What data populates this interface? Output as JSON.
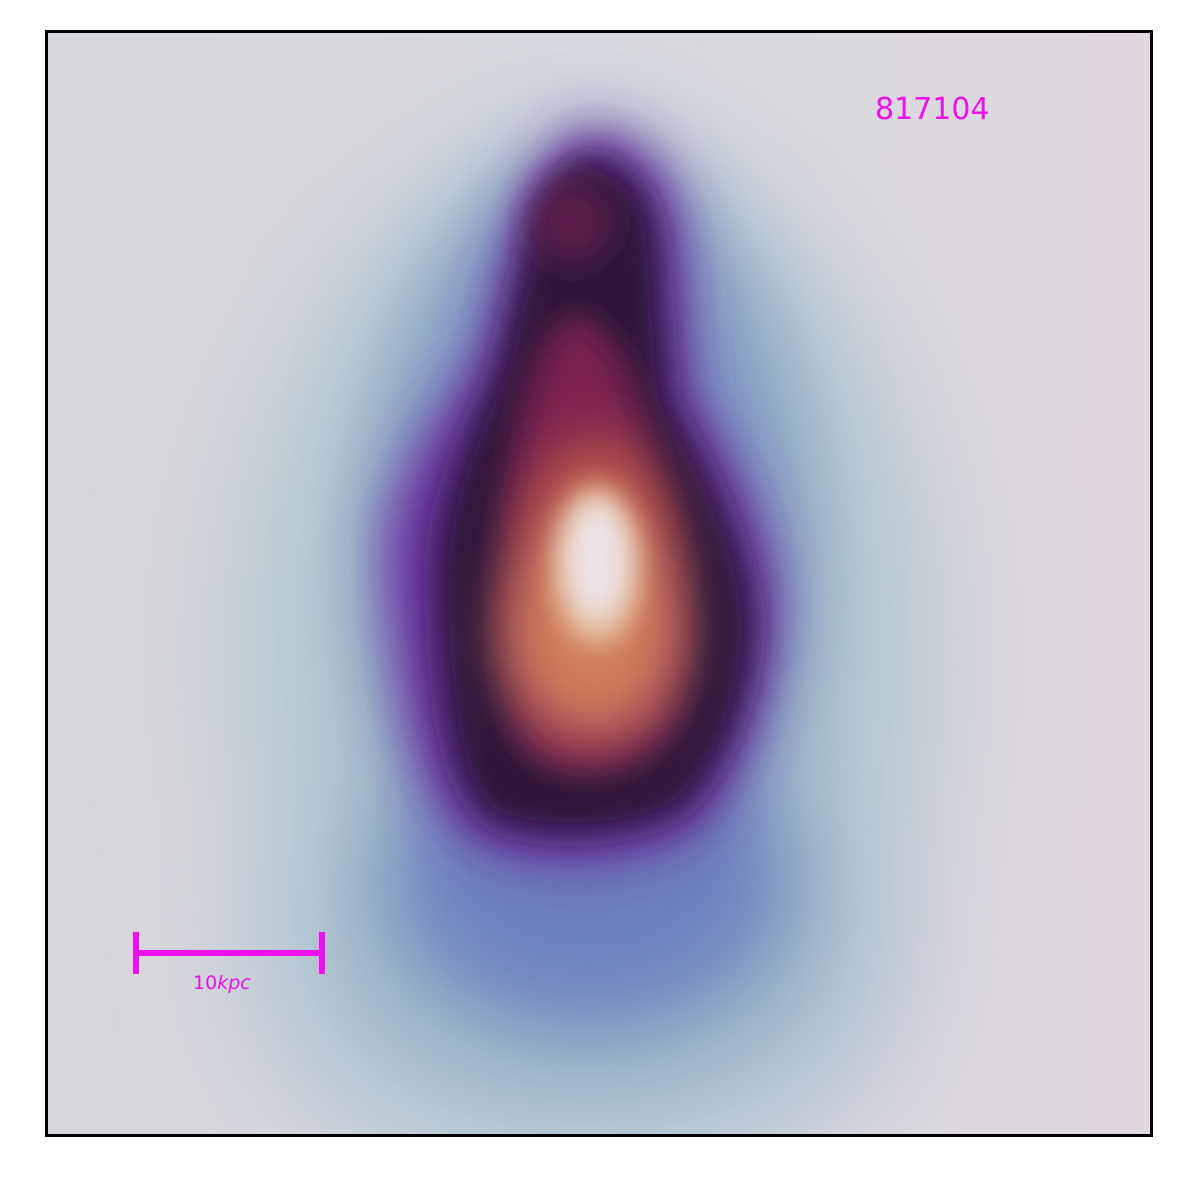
{
  "object_id": "817104",
  "scale_bar": {
    "value": "10",
    "unit": "kpc"
  },
  "colors": {
    "annotation": "#ee10ee",
    "frame": "#000000",
    "background": "#dedae0",
    "colormap": "twilight"
  }
}
